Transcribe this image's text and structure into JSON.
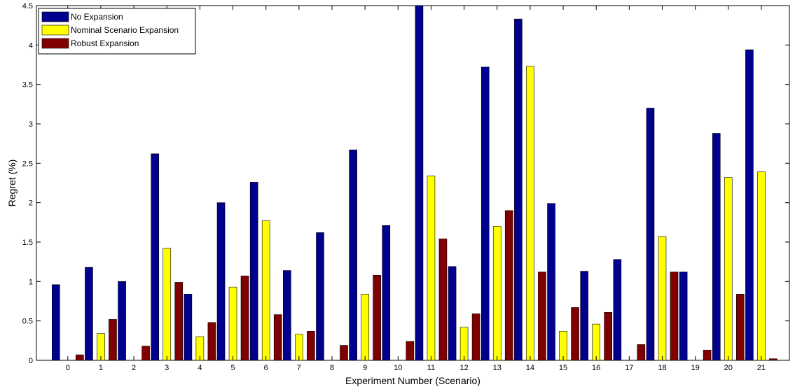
{
  "chart_data": {
    "type": "bar",
    "title": "",
    "xlabel": "Experiment Number (Scenario)",
    "ylabel": "Regret (%)",
    "ylim": [
      0,
      4.5
    ],
    "yticks": [
      0,
      0.5,
      1,
      1.5,
      2,
      2.5,
      3,
      3.5,
      4,
      4.5
    ],
    "ytick_labels": [
      "0",
      "0.5",
      "1",
      "1.5",
      "2",
      "2.5",
      "3",
      "3.5",
      "4",
      "4.5"
    ],
    "categories": [
      "0",
      "1",
      "2",
      "3",
      "4",
      "5",
      "6",
      "7",
      "8",
      "9",
      "10",
      "11",
      "12",
      "13",
      "14",
      "15",
      "16",
      "17",
      "18",
      "19",
      "20",
      "21"
    ],
    "grid": false,
    "legend_position": "top-left",
    "series": [
      {
        "name": "No Expansion",
        "color": "#00008f",
        "values": [
          0.96,
          1.18,
          1.0,
          2.62,
          0.84,
          2.0,
          2.26,
          1.14,
          1.62,
          2.67,
          1.71,
          4.5,
          1.19,
          3.72,
          4.33,
          1.99,
          1.13,
          1.28,
          3.2,
          1.12,
          2.88,
          3.94
        ]
      },
      {
        "name": "Nominal Scenario Expansion",
        "color": "#ffff00",
        "values": [
          0.0,
          0.34,
          0.0,
          1.42,
          0.3,
          0.93,
          1.77,
          0.33,
          0.0,
          0.84,
          0.0,
          2.34,
          0.42,
          1.7,
          3.73,
          0.37,
          0.46,
          0.0,
          1.57,
          0.0,
          2.32,
          2.39
        ]
      },
      {
        "name": "Robust Expansion",
        "color": "#800000",
        "values": [
          0.07,
          0.52,
          0.18,
          0.99,
          0.48,
          1.07,
          0.58,
          0.37,
          0.19,
          1.08,
          0.24,
          1.54,
          0.59,
          1.9,
          1.12,
          0.67,
          0.61,
          0.2,
          1.12,
          0.13,
          0.84,
          0.02
        ]
      }
    ]
  }
}
